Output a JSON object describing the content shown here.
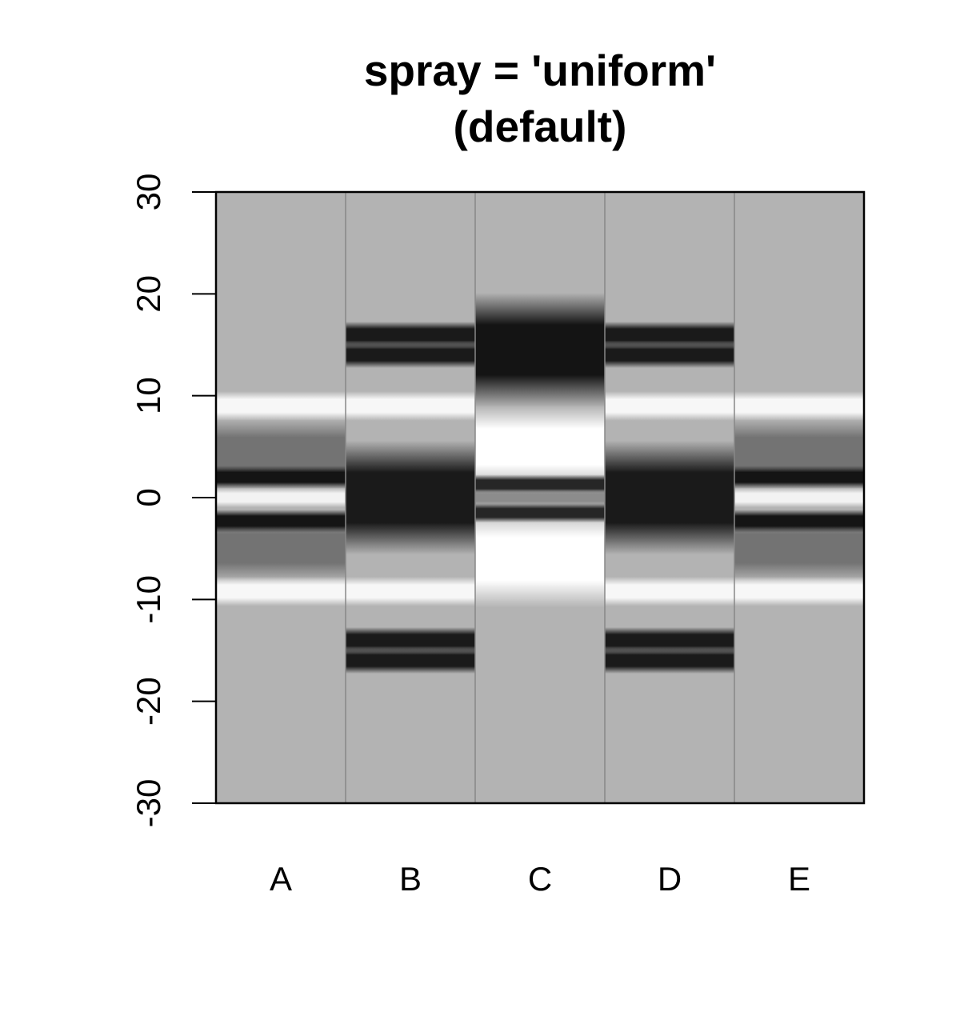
{
  "chart_data": {
    "type": "heatmap",
    "title": [
      "spray = 'uniform'",
      "(default)"
    ],
    "xlabel": "",
    "ylabel": "",
    "categories": [
      "A",
      "B",
      "C",
      "D",
      "E"
    ],
    "ylim": [
      -30,
      30
    ],
    "yticks": [
      "30",
      "20",
      "10",
      "0",
      "-10",
      "-20",
      "-30"
    ],
    "ytick_values": [
      30,
      20,
      10,
      0,
      -10,
      -20,
      -30
    ],
    "colormap": "grayscale",
    "background_level": 0.7,
    "columns": [
      {
        "name": "A",
        "bands": [
          {
            "center": 9,
            "width": 0.9,
            "level": 0.97
          },
          {
            "center": 4.5,
            "width": 2.0,
            "level": 0.45
          },
          {
            "center": 2,
            "width": 0.7,
            "level": 0.08
          },
          {
            "center": 0,
            "width": 0.6,
            "level": 0.95
          },
          {
            "center": -2.3,
            "width": 0.7,
            "level": 0.08
          },
          {
            "center": -5,
            "width": 2.0,
            "level": 0.45
          },
          {
            "center": -9.2,
            "width": 0.9,
            "level": 0.97
          }
        ]
      },
      {
        "name": "B",
        "bands": [
          {
            "center": 16,
            "width": 0.8,
            "level": 0.1
          },
          {
            "center": 14,
            "width": 0.8,
            "level": 0.1
          },
          {
            "center": 9,
            "width": 0.9,
            "level": 0.97
          },
          {
            "center": 0,
            "width": 3.5,
            "level": 0.1
          },
          {
            "center": -9.2,
            "width": 0.9,
            "level": 0.97
          },
          {
            "center": -14,
            "width": 0.8,
            "level": 0.1
          },
          {
            "center": -16,
            "width": 0.8,
            "level": 0.1
          }
        ]
      },
      {
        "name": "C",
        "bands": [
          {
            "center": 14.5,
            "width": 3.5,
            "level": 0.08
          },
          {
            "center": 5,
            "width": 2.5,
            "level": 1.0
          },
          {
            "center": 1.3,
            "width": 0.6,
            "level": 0.15
          },
          {
            "center": 0,
            "width": 0.5,
            "level": 0.55
          },
          {
            "center": -1.5,
            "width": 0.6,
            "level": 0.15
          },
          {
            "center": -6,
            "width": 3.0,
            "level": 1.0
          }
        ]
      },
      {
        "name": "D",
        "bands": [
          {
            "center": 16,
            "width": 0.8,
            "level": 0.1
          },
          {
            "center": 14,
            "width": 0.8,
            "level": 0.1
          },
          {
            "center": 9,
            "width": 0.9,
            "level": 0.97
          },
          {
            "center": 0,
            "width": 3.5,
            "level": 0.1
          },
          {
            "center": -9.2,
            "width": 0.9,
            "level": 0.97
          },
          {
            "center": -14,
            "width": 0.8,
            "level": 0.1
          },
          {
            "center": -16,
            "width": 0.8,
            "level": 0.1
          }
        ]
      },
      {
        "name": "E",
        "bands": [
          {
            "center": 9,
            "width": 0.9,
            "level": 0.97
          },
          {
            "center": 4.5,
            "width": 2.0,
            "level": 0.45
          },
          {
            "center": 2,
            "width": 0.7,
            "level": 0.08
          },
          {
            "center": 0,
            "width": 0.6,
            "level": 0.95
          },
          {
            "center": -2.3,
            "width": 0.7,
            "level": 0.08
          },
          {
            "center": -5,
            "width": 2.0,
            "level": 0.45
          },
          {
            "center": -9.2,
            "width": 0.9,
            "level": 0.97
          }
        ]
      }
    ]
  }
}
